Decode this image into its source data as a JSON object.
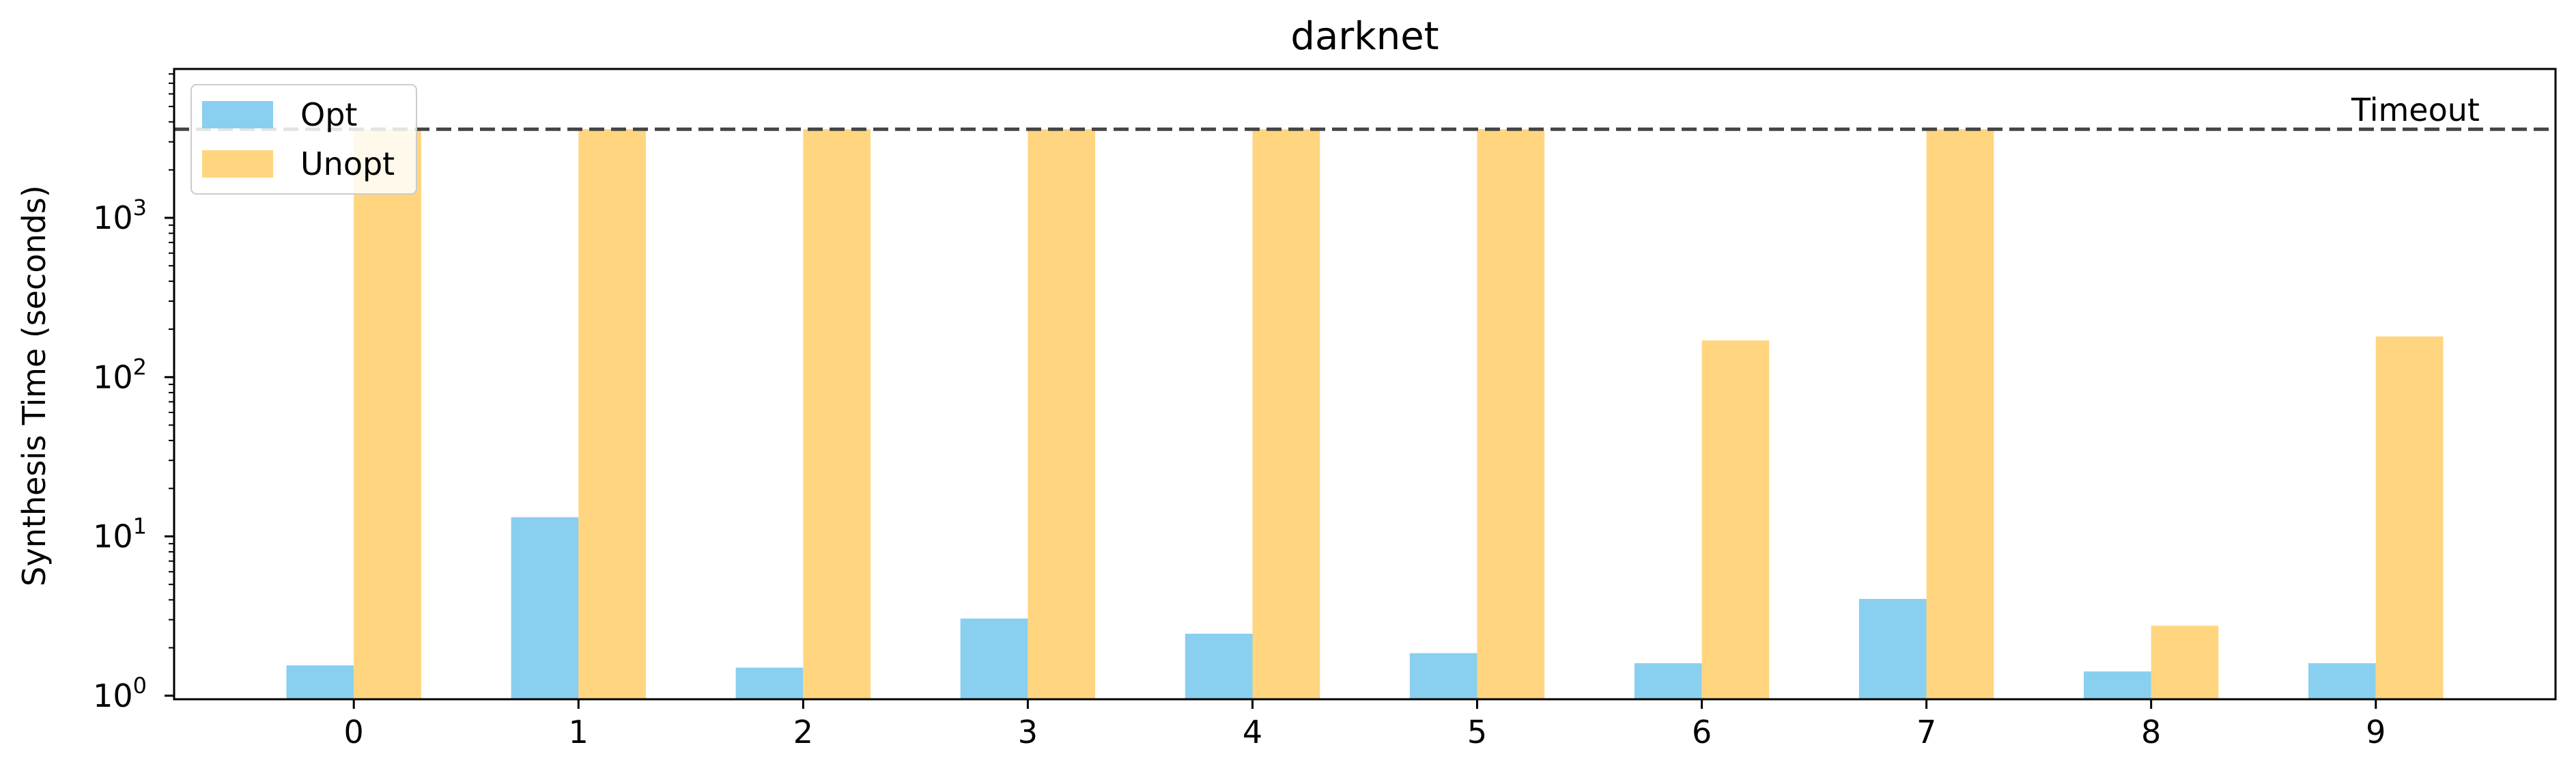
{
  "chart_data": {
    "type": "bar",
    "title": "darknet",
    "xlabel": "",
    "ylabel": "Synthesis Time (seconds)",
    "yscale": "log",
    "ylim": [
      0.95,
      8600
    ],
    "yticks": [
      {
        "value": 1,
        "base": "10",
        "exp": "0"
      },
      {
        "value": 10,
        "base": "10",
        "exp": "1"
      },
      {
        "value": 100,
        "base": "10",
        "exp": "2"
      },
      {
        "value": 1000,
        "base": "10",
        "exp": "3"
      }
    ],
    "categories": [
      "0",
      "1",
      "2",
      "3",
      "4",
      "5",
      "6",
      "7",
      "8",
      "9"
    ],
    "series": [
      {
        "name": "Opt",
        "color": "#89CFF0",
        "values": [
          1.55,
          13.2,
          1.5,
          3.05,
          2.45,
          1.85,
          1.6,
          4.05,
          1.42,
          1.6
        ]
      },
      {
        "name": "Unopt",
        "color": "#FFD580",
        "values": [
          3600,
          3600,
          3600,
          3600,
          3600,
          3600,
          170,
          3600,
          2.75,
          180
        ]
      }
    ],
    "reference_line": {
      "value": 3600,
      "label": "Timeout",
      "style": "dashed",
      "color": "#444444"
    },
    "legend_position": "top-left",
    "grid": false
  }
}
